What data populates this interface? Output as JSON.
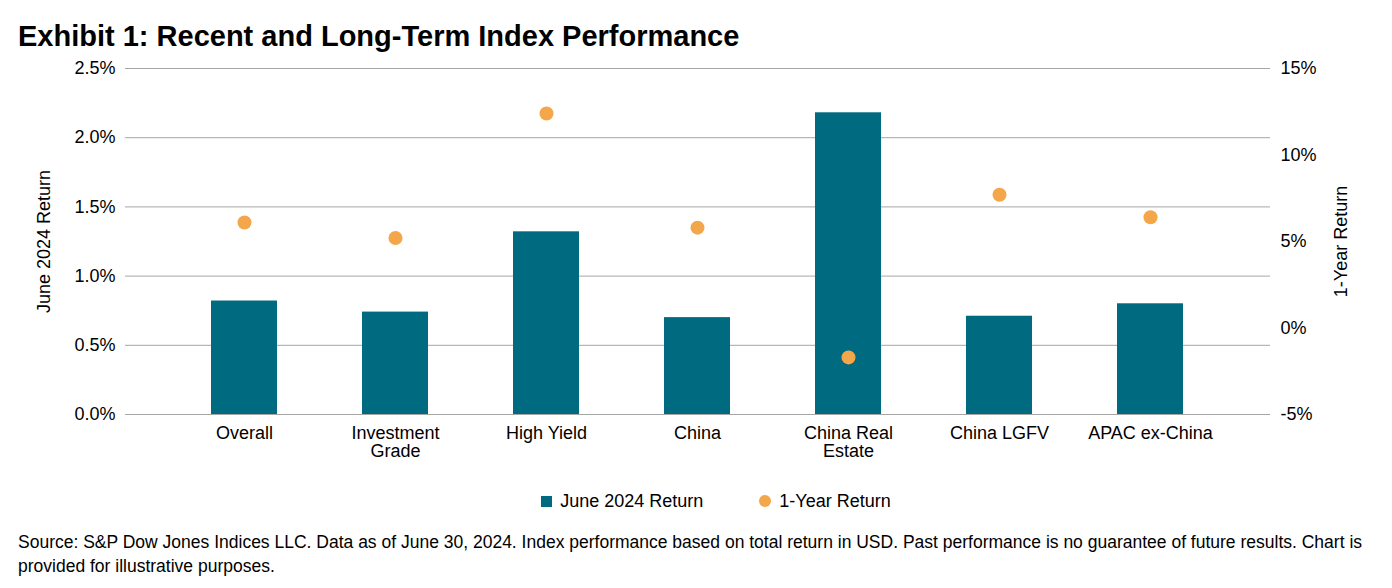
{
  "chart_data": {
    "type": "bar",
    "title": "Exhibit 1: Recent and Long-Term Index Performance",
    "categories": [
      "Overall",
      "Investment Grade",
      "High Yield",
      "China",
      "China Real Estate",
      "China LGFV",
      "APAC ex-China"
    ],
    "series": [
      {
        "name": "June 2024 Return",
        "type": "bar",
        "color": "#006b80",
        "values": [
          0.82,
          0.74,
          1.32,
          0.7,
          2.18,
          0.71,
          0.8
        ]
      },
      {
        "name": "1-Year Return",
        "type": "scatter",
        "marker": "circle",
        "axis": "y2",
        "color": "#f3a64a",
        "values": [
          6.1,
          5.2,
          12.4,
          5.8,
          -1.7,
          7.7,
          6.4
        ]
      }
    ],
    "ylabel": "June 2024 Return",
    "y2label": "1-Year Return",
    "ylim": [
      0,
      2.5
    ],
    "yticks": [
      {
        "value": 0,
        "label": "0.0%"
      },
      {
        "value": 0.5,
        "label": "0.5%"
      },
      {
        "value": 1,
        "label": "1.0%"
      },
      {
        "value": 1.5,
        "label": "1.5%"
      },
      {
        "value": 2,
        "label": "2.0%"
      },
      {
        "value": 2.5,
        "label": "2.5%"
      }
    ],
    "y2lim": [
      -5,
      15
    ],
    "y2ticks": [
      {
        "value": -5,
        "label": "-5%"
      },
      {
        "value": 0,
        "label": "0%"
      },
      {
        "value": 5,
        "label": "5%"
      },
      {
        "value": 10,
        "label": "10%"
      },
      {
        "value": 15,
        "label": "15%"
      }
    ],
    "grid": true,
    "legend": "bottom",
    "note": "Source: S&P Dow Jones Indices LLC.  Data as of June 30, 2024.  Index performance based on total return in USD.  Past performance is no guarantee of future results.  Chart is provided for illustrative purposes."
  }
}
